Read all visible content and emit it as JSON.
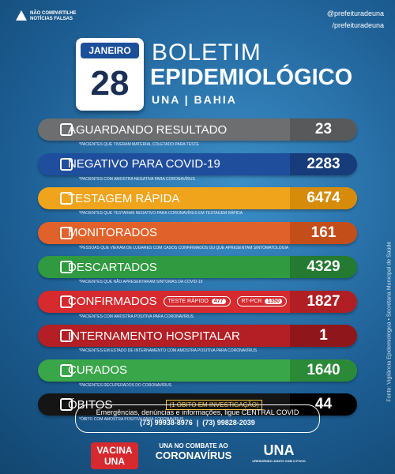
{
  "header": {
    "warning": "NÃO COMPARTILHE NOTÍCIAS FALSAS",
    "instagram": "@prefeituradeuna",
    "facebook": "/prefeituradeuna",
    "month": "JANEIRO",
    "day": "28",
    "title_line1": "BOLETIM",
    "title_line2": "EPIDEMIOLÓGICO",
    "location": "UNA | BAHIA"
  },
  "rows": [
    {
      "label": "AGUARDANDO RESULTADO",
      "value": 23,
      "note": "*PACIENTES QUE TIVERAM MATERIAL COLETADO PARA TESTE"
    },
    {
      "label": "NEGATIVO PARA COVID-19",
      "value": 2283,
      "note": "*PACIENTES COM AMOSTRA NEGATIVA PARA CORONAVÍRUS"
    },
    {
      "label": "TESTAGEM RÁPIDA",
      "value": 6474,
      "note": "*PACIENTES QUE TESTARAM NEGATIVO PARA CORONAVÍRUS EM TESTAGEM RÁPIDA"
    },
    {
      "label": "MONITORADOS",
      "value": 161,
      "note": "*PESSOAS QUE VIERAM DE LUGARES COM CASOS CONFIRMADOS OU QUE APRESENTAM SINTOMATOLOGIA"
    },
    {
      "label": "DESCARTADOS",
      "value": 4329,
      "note": "*PACIENTES QUE NÃO APRESENTARAM SINTOMAS DA COVID-19"
    },
    {
      "label": "CONFIRMADOS",
      "value": 1827,
      "note": "*PACIENTES COM AMOSTRA POSITIVA PARA CORONAVÍRUS",
      "extras": [
        {
          "label": "TESTE RÁPIDO",
          "value": 477
        },
        {
          "label": "RT-PCR",
          "value": 1350
        }
      ]
    },
    {
      "label": "INTERNAMENTO HOSPITALAR",
      "value": 1,
      "note": "*PACIENTES EM ESTADO DE INTERNAMENTO COM AMOSTRA POSITIVA PARA CORONAVÍRUS"
    },
    {
      "label": "CURADOS",
      "value": 1640,
      "note": "*PACIENTES RECUPERADOS DO CORONAVÍRUS"
    },
    {
      "label": "ÓBITOS",
      "value": 44,
      "note": "*ÓBITO COM AMOSTRA POSITIVA PARA CORONAVÍRUS",
      "extra_text": "(1 ÓBITO EM INVESTIGAÇÃO)"
    }
  ],
  "footer": {
    "info": "Emergências, denúncias e informações, ligue CENTRAL COVID",
    "phone1": "(73) 99938-8976",
    "phone2": "(73) 99828-2039",
    "logo1": "VACINA UNA",
    "logo2_line1": "UNA NO COMBATE AO",
    "logo2_line2": "CORONAVÍRUS",
    "logo3": "UNA",
    "logo3_sub": "CRESCENDO JUNTO COM O POVO"
  },
  "source": "Fonte: Vigilância Epidemiológica • Secretaria Municipal de Saúde"
}
